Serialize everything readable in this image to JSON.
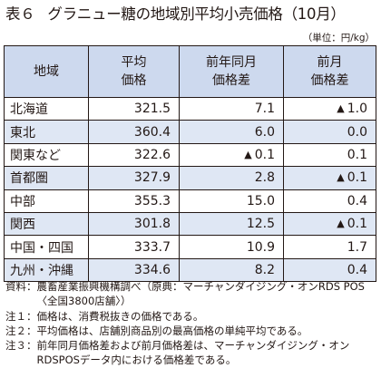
{
  "title": {
    "number": "表６",
    "text": "グラニュー糖の地域別平均小売価格（10月）"
  },
  "unit": "（単位：円/kg）",
  "columns": {
    "region": "地域",
    "avg_price": [
      "平均",
      "価格"
    ],
    "yoy_diff": [
      "前年同月",
      "価格差"
    ],
    "mom_diff": [
      "前月",
      "価格差"
    ]
  },
  "negative_symbol": "▲",
  "rows": [
    {
      "region": "北海道",
      "avg_price": "321.5",
      "yoy_diff": "7.1",
      "yoy_negative": false,
      "mom_diff": "1.0",
      "mom_negative": true
    },
    {
      "region": "東北",
      "avg_price": "360.4",
      "yoy_diff": "6.0",
      "yoy_negative": false,
      "mom_diff": "0.0",
      "mom_negative": false
    },
    {
      "region": "関東など",
      "avg_price": "322.6",
      "yoy_diff": "0.1",
      "yoy_negative": true,
      "mom_diff": "0.1",
      "mom_negative": false
    },
    {
      "region": "首都圏",
      "avg_price": "327.9",
      "yoy_diff": "2.8",
      "yoy_negative": false,
      "mom_diff": "0.1",
      "mom_negative": true
    },
    {
      "region": "中部",
      "avg_price": "355.3",
      "yoy_diff": "15.0",
      "yoy_negative": false,
      "mom_diff": "0.4",
      "mom_negative": false
    },
    {
      "region": "関西",
      "avg_price": "301.8",
      "yoy_diff": "12.5",
      "yoy_negative": false,
      "mom_diff": "0.1",
      "mom_negative": true
    },
    {
      "region": "中国・四国",
      "avg_price": "333.7",
      "yoy_diff": "10.9",
      "yoy_negative": false,
      "mom_diff": "1.7",
      "mom_negative": false
    },
    {
      "region": "九州・沖縄",
      "avg_price": "334.6",
      "yoy_diff": "8.2",
      "yoy_negative": false,
      "mom_diff": "0.4",
      "mom_negative": false
    }
  ],
  "notes": [
    {
      "head": "資料：",
      "body": "農畜産業振興機構調べ（原典：マーチャンダイジング・オンRDS POS〈全国3800店舗〉）"
    },
    {
      "head": "注１：",
      "body": "価格は、消費税抜きの価格である。"
    },
    {
      "head": "注２：",
      "body": "平均価格は、店舗別商品別の最高価格の単純平均である。"
    },
    {
      "head": "注３：",
      "body": "前年同月価格差および前月価格差は、マーチャンダイジング・オンRDSPOSデータ内における価格差である。"
    }
  ],
  "colors": {
    "header_bg": "#cdd9ee",
    "shaded_row_bg": "#dfe7f4",
    "text": "#231815"
  }
}
